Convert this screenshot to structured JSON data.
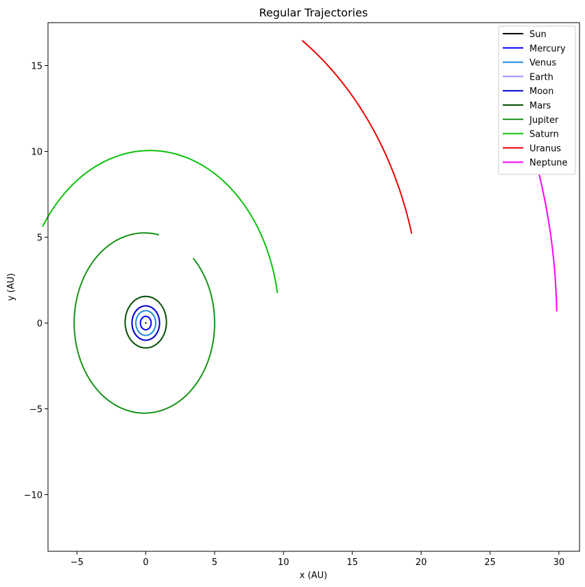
{
  "chart_data": {
    "type": "line",
    "title": "Regular Trajectories",
    "xlabel": "x (AU)",
    "ylabel": "y (AU)",
    "xlim": [
      -7.1,
      31.5
    ],
    "ylim": [
      -13.3,
      17.5
    ],
    "xticks": [
      -5,
      0,
      5,
      10,
      15,
      20,
      25,
      30
    ],
    "xtick_labels": [
      "−5",
      "0",
      "5",
      "10",
      "15",
      "20",
      "25",
      "30"
    ],
    "yticks": [
      -10,
      -5,
      0,
      5,
      10,
      15
    ],
    "ytick_labels": [
      "−10",
      "−5",
      "0",
      "5",
      "10",
      "15"
    ],
    "grid": false,
    "legend_position": "top-right",
    "series": [
      {
        "name": "Sun",
        "color": "#000000",
        "kind": "point",
        "cx": 0,
        "cy": 0
      },
      {
        "name": "Mercury",
        "color": "#0000ff",
        "kind": "ellipse",
        "cx": 0,
        "cy": 0,
        "rx": 0.39,
        "ry": 0.39,
        "start": 0,
        "end": 360
      },
      {
        "name": "Venus",
        "color": "#1e88e5",
        "kind": "ellipse",
        "cx": 0,
        "cy": 0,
        "rx": 0.72,
        "ry": 0.72,
        "start": 0,
        "end": 360
      },
      {
        "name": "Earth",
        "color": "#9b8cff",
        "kind": "ellipse",
        "cx": 0,
        "cy": 0,
        "rx": 1.0,
        "ry": 1.0,
        "start": 0,
        "end": 360
      },
      {
        "name": "Moon",
        "color": "#0000cd",
        "kind": "ellipse",
        "cx": 0,
        "cy": 0,
        "rx": 1.0,
        "ry": 1.0,
        "start": 0,
        "end": 360
      },
      {
        "name": "Mars",
        "color": "#004d00",
        "kind": "ellipse",
        "cx": 0,
        "cy": 0.05,
        "rx": 1.5,
        "ry": 1.5,
        "start": 0,
        "end": 360
      },
      {
        "name": "Jupiter",
        "color": "#159315",
        "kind": "ellipse",
        "cx": -0.1,
        "cy": 0.0,
        "rx": 5.1,
        "ry": 5.25,
        "start": 78,
        "end": 406
      },
      {
        "name": "Saturn",
        "color": "#0ac10a",
        "kind": "ellipse",
        "cx": 0.3,
        "cy": 0.0,
        "rx": 9.4,
        "ry": 10.05,
        "start": 10,
        "end": 146
      },
      {
        "name": "Uranus",
        "color": "#ee0000",
        "kind": "ellipse",
        "cx": 0.0,
        "cy": 0.0,
        "rx": 20.0,
        "ry": 20.0,
        "start": 15.1,
        "end": 55.4
      },
      {
        "name": "Neptune",
        "color": "#ff00ff",
        "kind": "ellipse",
        "cx": 0.0,
        "cy": 0.0,
        "rx": 29.85,
        "ry": 29.85,
        "start": 1.3,
        "end": 23.2
      }
    ]
  }
}
